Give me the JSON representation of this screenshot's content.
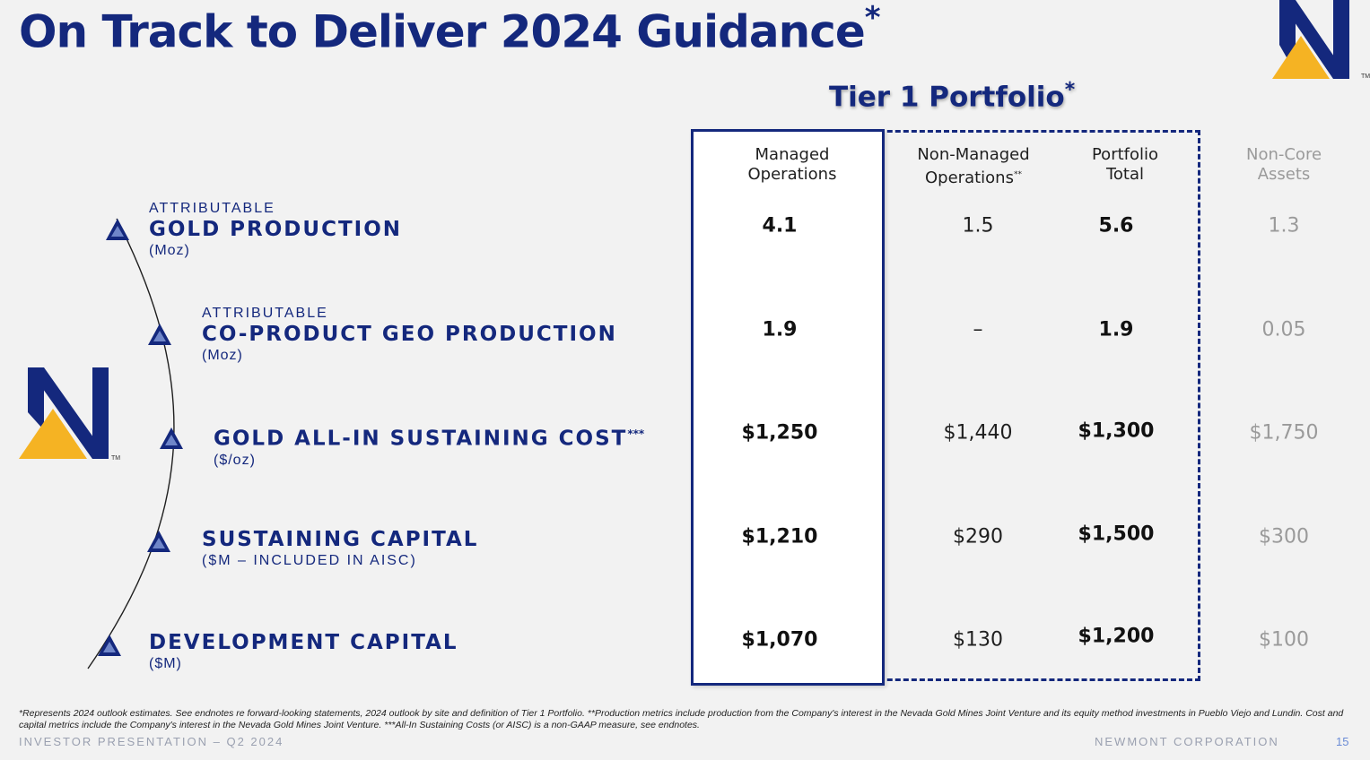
{
  "slide": {
    "title": "On Track to Deliver 2024 Guidance",
    "title_mark": "*"
  },
  "tier1": {
    "title": "Tier 1 Portfolio",
    "title_mark": "*"
  },
  "columns": {
    "managed": [
      "Managed",
      "Operations"
    ],
    "non_managed": [
      "Non-Managed",
      "Operations"
    ],
    "non_managed_mark": "**",
    "portfolio_total": [
      "Portfolio",
      "Total"
    ],
    "non_core": [
      "Non-Core",
      "Assets"
    ]
  },
  "rows": [
    {
      "small": "ATTRIBUTABLE",
      "main": "GOLD PRODUCTION",
      "mark": "",
      "unit": "(Moz)",
      "managed": "4.1",
      "non_managed": "1.5",
      "portfolio_total": "5.6",
      "non_core": "1.3"
    },
    {
      "small": "ATTRIBUTABLE",
      "main": "CO-PRODUCT GEO PRODUCTION",
      "mark": "",
      "unit": "(Moz)",
      "managed": "1.9",
      "non_managed": "–",
      "portfolio_total": "1.9",
      "non_core": "0.05"
    },
    {
      "small": "",
      "main": "GOLD ALL-IN SUSTAINING COST",
      "mark": "***",
      "unit": "($/oz)",
      "managed": "$1,250",
      "non_managed": "$1,440",
      "portfolio_total": "$1,300",
      "non_core": "$1,750"
    },
    {
      "small": "",
      "main": "SUSTAINING CAPITAL",
      "mark": "",
      "unit": "($M – INCLUDED IN AISC)",
      "managed": "$1,210",
      "non_managed": "$290",
      "portfolio_total": "$1,500",
      "non_core": "$300"
    },
    {
      "small": "",
      "main": "DEVELOPMENT CAPITAL",
      "mark": "",
      "unit": "($M)",
      "managed": "$1,070",
      "non_managed": "$130",
      "portfolio_total": "$1,200",
      "non_core": "$100"
    }
  ],
  "footnote": "*Represents 2024 outlook estimates. See endnotes re forward-looking statements, 2024 outlook by site and definition of Tier 1 Portfolio. **Production metrics include production from the Company's interest in the Nevada Gold Mines Joint Venture and its equity method investments in Pueblo Viejo and Lundin. Cost and capital metrics include the Company's interest in the Nevada Gold Mines Joint Venture. ***All-In Sustaining Costs (or AISC) is a non-GAAP measure, see endnotes.",
  "footer": {
    "left": "INVESTOR PRESENTATION – Q2 2024",
    "right": "NEWMONT CORPORATION",
    "page": "15"
  },
  "logo": {
    "trademark": "TM"
  },
  "colors": {
    "navy": "#14287d",
    "gold": "#f5b323",
    "grey_text": "#9a9a9a",
    "background": "#f2f2f2"
  },
  "icons": {
    "row_marker": "triangle-marker-icon",
    "logo": "newmont-logo"
  }
}
